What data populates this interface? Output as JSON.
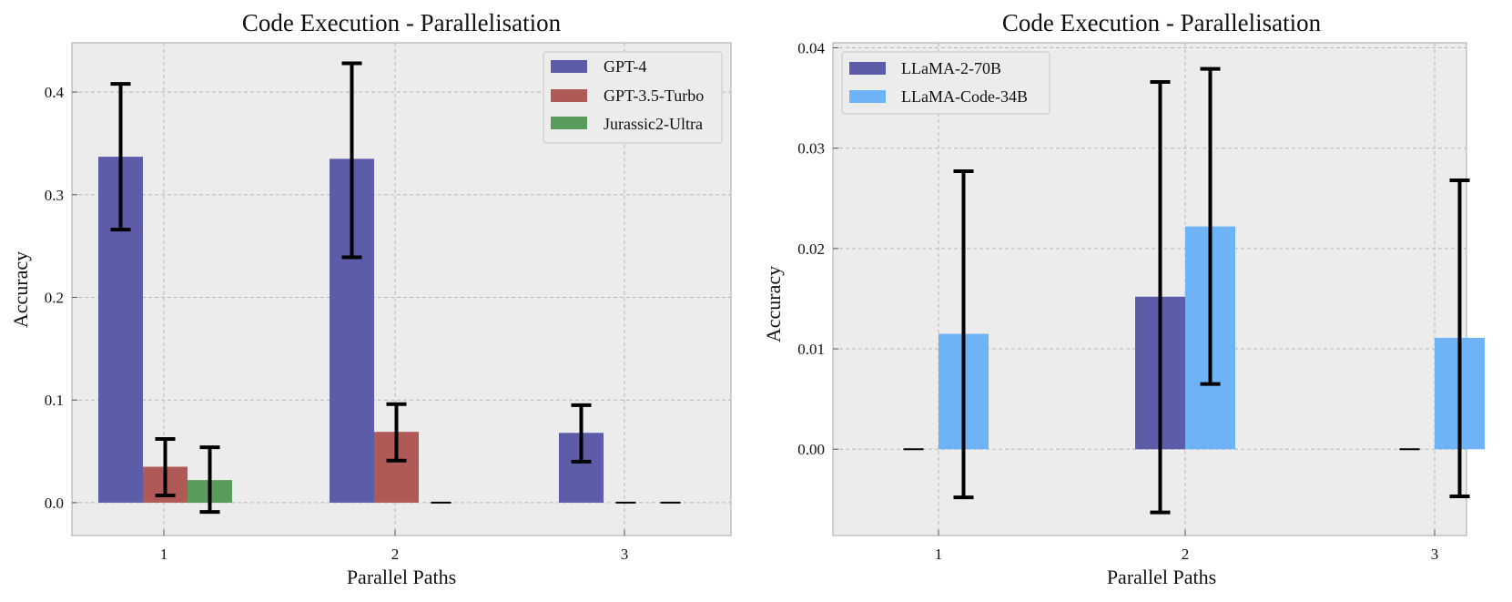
{
  "chart_data": [
    {
      "type": "bar",
      "title": "Code Execution - Parallelisation",
      "xlabel": "Parallel Paths",
      "ylabel": "Accuracy",
      "categories": [
        "1",
        "2",
        "3"
      ],
      "ylim": [
        -0.032,
        0.448
      ],
      "yticks": [
        "0.0",
        "0.1",
        "0.2",
        "0.3",
        "0.4"
      ],
      "ytick_values": [
        0.0,
        0.1,
        0.2,
        0.3,
        0.4
      ],
      "grid": true,
      "legend_position": "top-right",
      "series": [
        {
          "name": "GPT-4",
          "color": "#5d5ca9",
          "values": [
            0.337,
            0.335,
            0.068
          ],
          "err_low": [
            0.266,
            0.239,
            0.04
          ],
          "err_high": [
            0.408,
            0.428,
            0.095
          ]
        },
        {
          "name": "GPT-3.5-Turbo",
          "color": "#b05a57",
          "values": [
            0.035,
            0.069,
            0.0
          ],
          "err_low": [
            0.007,
            0.041,
            0.0
          ],
          "err_high": [
            0.062,
            0.096,
            0.0
          ]
        },
        {
          "name": "Jurassic2-Ultra",
          "color": "#5a9a5a",
          "values": [
            0.022,
            0.0,
            0.0
          ],
          "err_low": [
            -0.009,
            0.0,
            0.0
          ],
          "err_high": [
            0.054,
            0.0,
            0.0
          ]
        }
      ]
    },
    {
      "type": "bar",
      "title": "Code Execution - Parallelisation",
      "xlabel": "Parallel Paths",
      "ylabel": "Accuracy",
      "categories": [
        "1",
        "2",
        "3"
      ],
      "ylim": [
        -0.0086,
        0.0405
      ],
      "yticks": [
        "0.00",
        "0.01",
        "0.02",
        "0.03",
        "0.04"
      ],
      "ytick_values": [
        0.0,
        0.01,
        0.02,
        0.03,
        0.04
      ],
      "grid": true,
      "legend_position": "top-left",
      "series": [
        {
          "name": "LLaMA-2-70B",
          "color": "#5d5ca9",
          "values": [
            0.0,
            0.0152,
            0.0
          ],
          "err_low": [
            0.0,
            -0.0063,
            0.0
          ],
          "err_high": [
            0.0,
            0.0366,
            0.0
          ]
        },
        {
          "name": "LLaMA-Code-34B",
          "color": "#6db3f6",
          "values": [
            0.0115,
            0.0222,
            0.0111
          ],
          "err_low": [
            -0.0048,
            0.0065,
            -0.0047
          ],
          "err_high": [
            0.0277,
            0.0379,
            0.0268
          ]
        }
      ]
    }
  ]
}
